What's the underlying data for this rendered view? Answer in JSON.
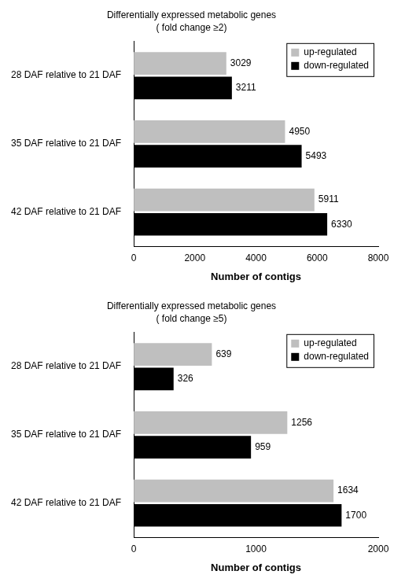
{
  "chart_data": [
    {
      "type": "bar",
      "orientation": "horizontal",
      "title": "Differentially expressed metabolic genes",
      "subtitle": "( fold change ≥2)",
      "categories": [
        "28 DAF relative to 21 DAF",
        "35 DAF relative to 21 DAF",
        "42 DAF relative to 21 DAF"
      ],
      "series": [
        {
          "name": "up-regulated",
          "color": "#bfbfbf",
          "values": [
            3029,
            4950,
            5911
          ]
        },
        {
          "name": "down-regulated",
          "color": "#000000",
          "values": [
            3211,
            5493,
            6330
          ]
        }
      ],
      "xlabel": "Number of contigs",
      "xlim": [
        0,
        8000
      ],
      "xticks": [
        0,
        2000,
        4000,
        6000,
        8000
      ],
      "grid": false,
      "legend": "upper right",
      "data_labels": true
    },
    {
      "type": "bar",
      "orientation": "horizontal",
      "title": "Differentially expressed metabolic genes",
      "subtitle": "( fold change ≥5)",
      "categories": [
        "28 DAF relative to 21 DAF",
        "35 DAF relative to 21 DAF",
        "42 DAF relative to 21 DAF"
      ],
      "series": [
        {
          "name": "up-regulated",
          "color": "#bfbfbf",
          "values": [
            639,
            1256,
            1634
          ]
        },
        {
          "name": "down-regulated",
          "color": "#000000",
          "values": [
            326,
            959,
            1700
          ]
        }
      ],
      "xlabel": "Number of contigs",
      "xlim": [
        0,
        2000
      ],
      "xticks": [
        0,
        1000,
        2000
      ],
      "grid": false,
      "legend": "upper right",
      "data_labels": true
    }
  ]
}
